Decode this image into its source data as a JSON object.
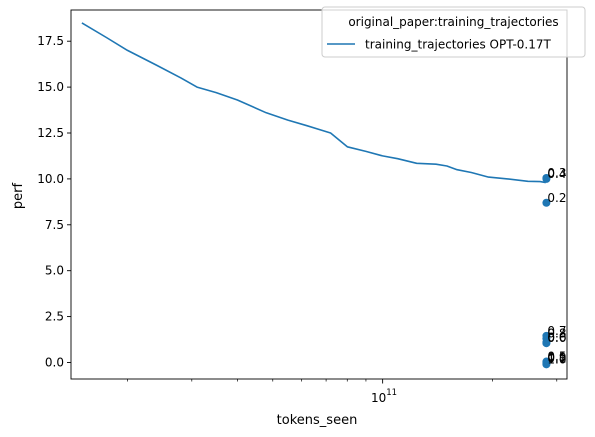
{
  "chart_data": {
    "type": "line",
    "xlabel": "tokens_seen",
    "ylabel": "perf",
    "x_scale": "log",
    "xlim": [
      14000000000,
      320000000000
    ],
    "ylim": [
      -0.9,
      19.2
    ],
    "x_major_tick_labels": [
      {
        "value": 100000000000,
        "base": "10",
        "exponent": "11"
      }
    ],
    "x_minor_ticks": [
      20000000000,
      30000000000,
      40000000000,
      50000000000,
      60000000000,
      70000000000,
      80000000000,
      90000000000,
      200000000000,
      300000000000
    ],
    "yticks": [
      0.0,
      2.5,
      5.0,
      7.5,
      10.0,
      12.5,
      15.0,
      17.5
    ],
    "ytick_labels": [
      "0.0",
      "2.5",
      "5.0",
      "7.5",
      "10.0",
      "12.5",
      "15.0",
      "17.5"
    ],
    "grid": false,
    "legend": {
      "placement": "top-right",
      "title": "original_paper:training_trajectories",
      "entries": [
        "training_trajectories OPT-0.17T"
      ]
    },
    "series": [
      {
        "name": "training_trajectories OPT-0.17T",
        "type": "line",
        "color": "#1f77b4",
        "x": [
          15000000000,
          17500000000,
          20000000000,
          24000000000,
          28000000000,
          31000000000,
          35000000000,
          40000000000,
          48000000000,
          55000000000,
          62000000000,
          72000000000,
          80000000000,
          90000000000,
          100000000000,
          110000000000,
          124000000000,
          140000000000,
          150000000000,
          160000000000,
          175000000000,
          195000000000,
          220000000000,
          250000000000,
          270000000000,
          280000000000
        ],
        "y": [
          18.5,
          17.7,
          17.0,
          16.2,
          15.5,
          15.0,
          14.7,
          14.3,
          13.6,
          13.2,
          12.9,
          12.5,
          11.75,
          11.5,
          11.25,
          11.1,
          10.85,
          10.8,
          10.7,
          10.5,
          10.35,
          10.1,
          10.0,
          9.87,
          9.85,
          9.8
        ]
      },
      {
        "name": "",
        "type": "scatter",
        "color": "#1f77b4",
        "points": [
          {
            "x": 281000000000,
            "y": 10.05,
            "label": "0.3"
          },
          {
            "x": 281000000000,
            "y": 10.0,
            "label": "0.4"
          },
          {
            "x": 281000000000,
            "y": 8.7,
            "label": "0.2"
          },
          {
            "x": 281000000000,
            "y": 1.45,
            "label": "0.7"
          },
          {
            "x": 281000000000,
            "y": 1.3,
            "label": "0.8"
          },
          {
            "x": 281000000000,
            "y": 1.1,
            "label": "0.6"
          },
          {
            "x": 281000000000,
            "y": 1.05,
            "label": "0.0"
          },
          {
            "x": 281000000000,
            "y": 0.05,
            "label": "0.5"
          },
          {
            "x": 281000000000,
            "y": 0.0,
            "label": "0.9"
          },
          {
            "x": 281000000000,
            "y": -0.05,
            "label": "0.1"
          },
          {
            "x": 281000000000,
            "y": -0.1,
            "label": "1.0"
          }
        ]
      }
    ]
  }
}
